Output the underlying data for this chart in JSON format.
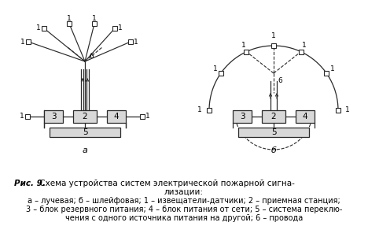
{
  "line_color": "#2a2a2a",
  "box_fill": "#d8d8d8",
  "label_a": "а",
  "label_b": "б",
  "title_bold": "Рис. 9.",
  "title_normal": " Схема устройства систем электрической пожарной сигна-",
  "title_line2": "лизации:",
  "caption1": "а – лучевая; б – шлейфовая; 1 – извещатели-датчики; 2 – приемная станция;",
  "caption2": "3 – блок резервного питания; 4 – блок питания от сети; 5 – система переклю-",
  "caption3": "чения с одного источника питания на другой; 6 – провода"
}
